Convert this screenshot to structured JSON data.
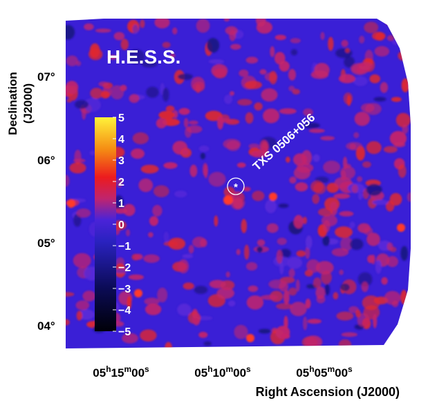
{
  "figure": {
    "instrument_label": "H.E.S.S.",
    "source_label": "TXS 0506+056",
    "x_axis_title": "Right Ascension (J2000)",
    "y_axis_title_line1": "Declination",
    "y_axis_title_line2": "(J2000)",
    "x_ticks": [
      {
        "h": "05",
        "m": "15",
        "s": "00"
      },
      {
        "h": "05",
        "m": "10",
        "s": "00"
      },
      {
        "h": "05",
        "m": "05",
        "s": "00"
      }
    ],
    "y_ticks": [
      "07°",
      "06°",
      "05°",
      "04°"
    ],
    "colorbar_ticks": [
      "5",
      "4",
      "3",
      "2",
      "1",
      "0",
      "−1",
      "−2",
      "−3",
      "−4",
      "−5"
    ],
    "colorbar_range": [
      -5,
      5
    ],
    "colors": {
      "background_map": "#3a1fd6",
      "excess_red": "#e0282e",
      "label_white": "#ffffff",
      "axis_black": "#000000"
    }
  }
}
